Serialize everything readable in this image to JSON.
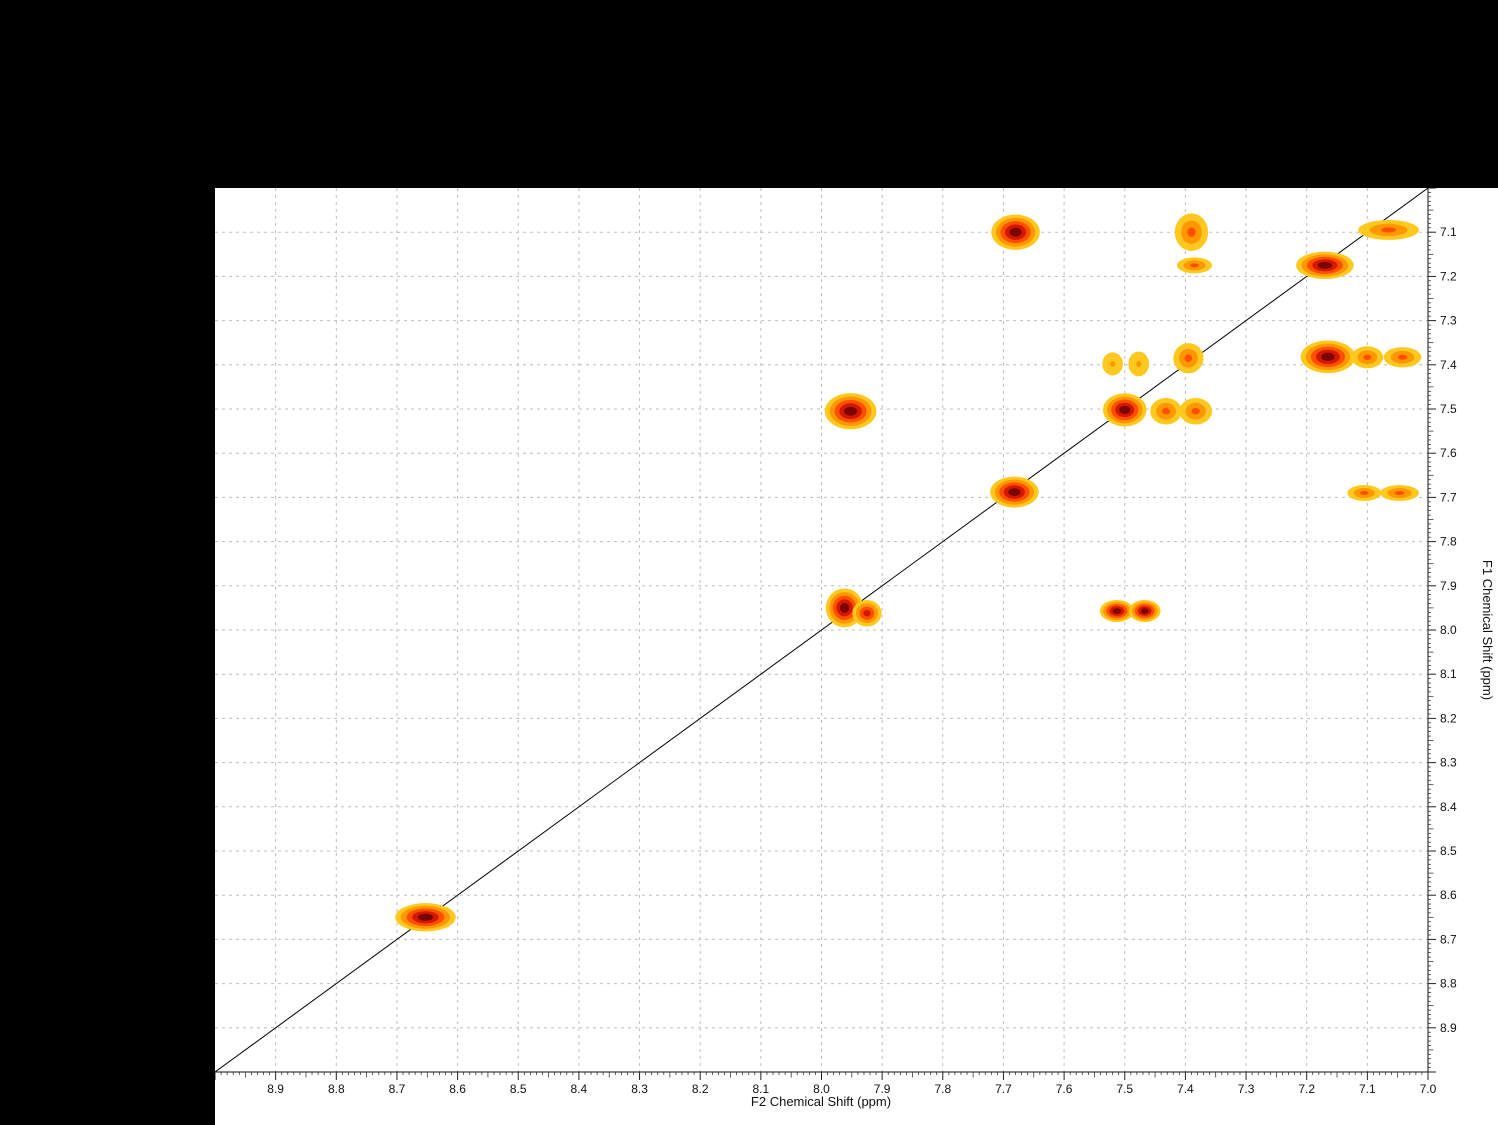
{
  "app": {
    "background_color": "#000000",
    "canvas_color": "#ffffff"
  },
  "chart_data": {
    "type": "scatter",
    "subtype": "2D NMR COSY contour spectrum",
    "title": "",
    "xlabel": "F2 Chemical Shift (ppm)",
    "ylabel": "F1 Chemical Shift (ppm)",
    "x_range": [
      9.0,
      7.0
    ],
    "y_range": [
      7.0,
      9.0
    ],
    "grid": true,
    "grid_color": "#bfbfbf",
    "diagonal_line": {
      "from_ppm": [
        9.0,
        9.0
      ],
      "to_ppm": [
        7.0,
        7.0
      ],
      "color": "#000000"
    },
    "x_tick_labels": [
      "8.9",
      "8.8",
      "8.7",
      "8.6",
      "8.5",
      "8.4",
      "8.3",
      "8.2",
      "8.1",
      "8.0",
      "7.9",
      "7.8",
      "7.7",
      "7.6",
      "7.5",
      "7.4",
      "7.3",
      "7.2",
      "7.1",
      "7.0"
    ],
    "y_tick_labels": [
      "7.1",
      "7.2",
      "7.3",
      "7.4",
      "7.5",
      "7.6",
      "7.7",
      "7.8",
      "7.9",
      "8.0",
      "8.1",
      "8.2",
      "8.3",
      "8.4",
      "8.5",
      "8.6",
      "8.7",
      "8.8",
      "8.9"
    ],
    "contour_colors": [
      "#FFC81E",
      "#FF9800",
      "#FF4E00",
      "#D21900",
      "#7A0404"
    ],
    "peaks": [
      {
        "f2": 7.68,
        "f1": 7.1,
        "w": 0.08,
        "h": 0.08,
        "levels": 5,
        "kind": "cross"
      },
      {
        "f2": 7.39,
        "f1": 7.1,
        "w": 0.055,
        "h": 0.085,
        "levels": 3,
        "kind": "cross"
      },
      {
        "f2": 7.065,
        "f1": 7.095,
        "w": 0.1,
        "h": 0.045,
        "levels": 3,
        "kind": "diagonal"
      },
      {
        "f2": 7.385,
        "f1": 7.175,
        "w": 0.058,
        "h": 0.036,
        "levels": 3,
        "kind": "cross"
      },
      {
        "f2": 7.17,
        "f1": 7.175,
        "w": 0.095,
        "h": 0.062,
        "levels": 5,
        "kind": "diagonal"
      },
      {
        "f2": 7.52,
        "f1": 7.398,
        "w": 0.034,
        "h": 0.052,
        "levels": 2,
        "kind": "cross"
      },
      {
        "f2": 7.477,
        "f1": 7.398,
        "w": 0.034,
        "h": 0.056,
        "levels": 2,
        "kind": "cross"
      },
      {
        "f2": 7.395,
        "f1": 7.385,
        "w": 0.05,
        "h": 0.068,
        "levels": 3,
        "rot": -36,
        "kind": "diagonal"
      },
      {
        "f2": 7.165,
        "f1": 7.382,
        "w": 0.09,
        "h": 0.074,
        "levels": 5,
        "kind": "cross"
      },
      {
        "f2": 7.1,
        "f1": 7.383,
        "w": 0.052,
        "h": 0.05,
        "levels": 3,
        "kind": "cross"
      },
      {
        "f2": 7.042,
        "f1": 7.383,
        "w": 0.062,
        "h": 0.046,
        "levels": 3,
        "kind": "cross"
      },
      {
        "f2": 7.952,
        "f1": 7.505,
        "w": 0.085,
        "h": 0.082,
        "levels": 5,
        "kind": "cross"
      },
      {
        "f2": 7.5,
        "f1": 7.502,
        "w": 0.072,
        "h": 0.075,
        "levels": 5,
        "kind": "diagonal"
      },
      {
        "f2": 7.432,
        "f1": 7.505,
        "w": 0.052,
        "h": 0.06,
        "levels": 3,
        "kind": "cross"
      },
      {
        "f2": 7.383,
        "f1": 7.505,
        "w": 0.054,
        "h": 0.06,
        "levels": 3,
        "kind": "cross"
      },
      {
        "f2": 7.682,
        "f1": 7.688,
        "w": 0.08,
        "h": 0.07,
        "levels": 5,
        "kind": "diagonal"
      },
      {
        "f2": 7.105,
        "f1": 7.69,
        "w": 0.056,
        "h": 0.036,
        "levels": 3,
        "kind": "cross"
      },
      {
        "f2": 7.047,
        "f1": 7.69,
        "w": 0.064,
        "h": 0.036,
        "levels": 3,
        "kind": "cross"
      },
      {
        "f2": 7.962,
        "f1": 7.95,
        "w": 0.062,
        "h": 0.088,
        "levels": 5,
        "kind": "diagonal"
      },
      {
        "f2": 7.925,
        "f1": 7.962,
        "w": 0.048,
        "h": 0.06,
        "levels": 4,
        "kind": "diagonal"
      },
      {
        "f2": 7.513,
        "f1": 7.957,
        "w": 0.056,
        "h": 0.05,
        "levels": 5,
        "kind": "cross"
      },
      {
        "f2": 7.467,
        "f1": 7.957,
        "w": 0.052,
        "h": 0.05,
        "levels": 5,
        "kind": "cross"
      },
      {
        "f2": 8.653,
        "f1": 8.65,
        "w": 0.1,
        "h": 0.064,
        "levels": 5,
        "kind": "diagonal"
      }
    ]
  }
}
